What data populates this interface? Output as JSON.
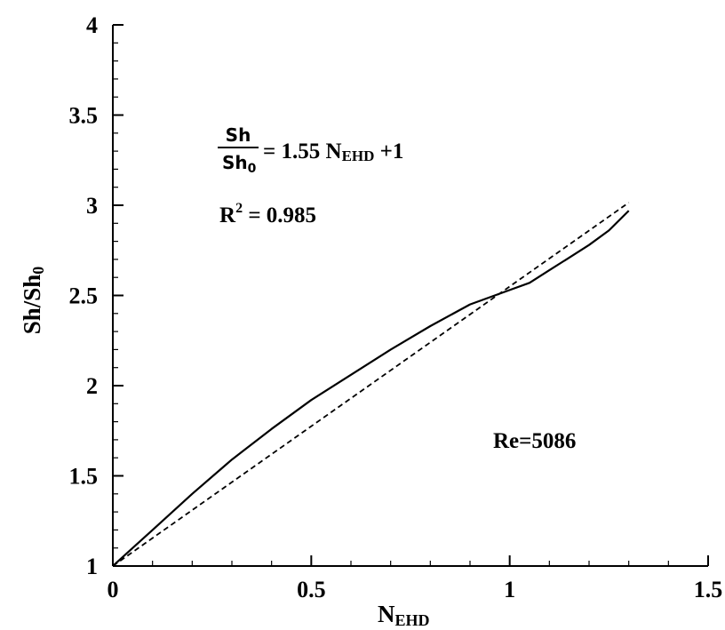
{
  "chart_data": {
    "type": "line",
    "xlabel": {
      "main": "N",
      "sub": "EHD"
    },
    "ylabel": {
      "main": "Sh/Sh",
      "sub": "0"
    },
    "xlim": [
      0,
      1.5
    ],
    "ylim": [
      1,
      4
    ],
    "x_ticks": [
      0,
      0.5,
      1,
      1.5
    ],
    "x_tick_labels": [
      "0",
      "0.5",
      "1",
      "1.5"
    ],
    "y_ticks": [
      1,
      1.5,
      2,
      2.5,
      3,
      3.5,
      4
    ],
    "y_tick_labels": [
      "1",
      "1.5",
      "2",
      "2.5",
      "3",
      "3.5",
      "4"
    ],
    "x_minor_step": 0.1,
    "y_minor_step": 0.1,
    "grid": false,
    "series": [
      {
        "style": "solid",
        "x": [
          0,
          0.05,
          0.1,
          0.2,
          0.3,
          0.4,
          0.5,
          0.6,
          0.7,
          0.8,
          0.9,
          1.0,
          1.05,
          1.1,
          1.15,
          1.2,
          1.25,
          1.3
        ],
        "y": [
          1,
          1.1,
          1.2,
          1.4,
          1.59,
          1.76,
          1.92,
          2.06,
          2.2,
          2.33,
          2.45,
          2.53,
          2.57,
          2.64,
          2.71,
          2.78,
          2.86,
          2.97
        ]
      },
      {
        "style": "dashed",
        "x": [
          0,
          1.3
        ],
        "y": [
          1,
          3.015
        ]
      }
    ],
    "annotations": {
      "equation": {
        "frac_num": "Sh",
        "frac_den_main": "Sh",
        "frac_den_sub": "0",
        "rhs_pre": "= 1.55 N",
        "rhs_sub": "EHD",
        "rhs_post": " +1"
      },
      "r_squared": {
        "label": "R",
        "exp": "2",
        "value": " = 0.985"
      },
      "reynolds": "Re=5086"
    }
  }
}
